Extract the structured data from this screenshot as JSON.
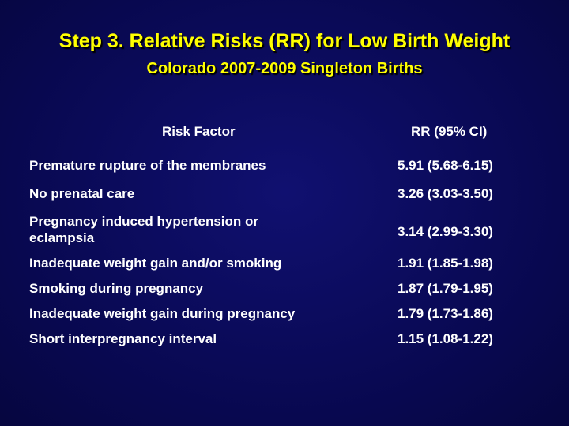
{
  "title": "Step 3. Relative Risks (RR) for Low Birth Weight",
  "subtitle": "Colorado 2007-2009 Singleton Births",
  "table": {
    "headers": {
      "factor": "Risk Factor",
      "rr": "RR (95% CI)"
    },
    "rows": [
      {
        "factor": "Premature rupture of the membranes",
        "rr": "5.91 (5.68-6.15)"
      },
      {
        "factor": "No prenatal care",
        "rr": "3.26 (3.03-3.50)"
      },
      {
        "factor": "Pregnancy induced hypertension or eclampsia",
        "rr": "3.14 (2.99-3.30)"
      },
      {
        "factor": "Inadequate weight gain and/or smoking",
        "rr": "1.91 (1.85-1.98)"
      },
      {
        "factor": "Smoking during pregnancy",
        "rr": "1.87 (1.79-1.95)"
      },
      {
        "factor": "Inadequate weight gain during pregnancy",
        "rr": "1.79 (1.73-1.86)"
      },
      {
        "factor": "Short interpregnancy interval",
        "rr": "1.15 (1.08-1.22)"
      }
    ]
  },
  "colors": {
    "background": "#0a0a5a",
    "title": "#ffff00",
    "text": "#ffffff"
  }
}
